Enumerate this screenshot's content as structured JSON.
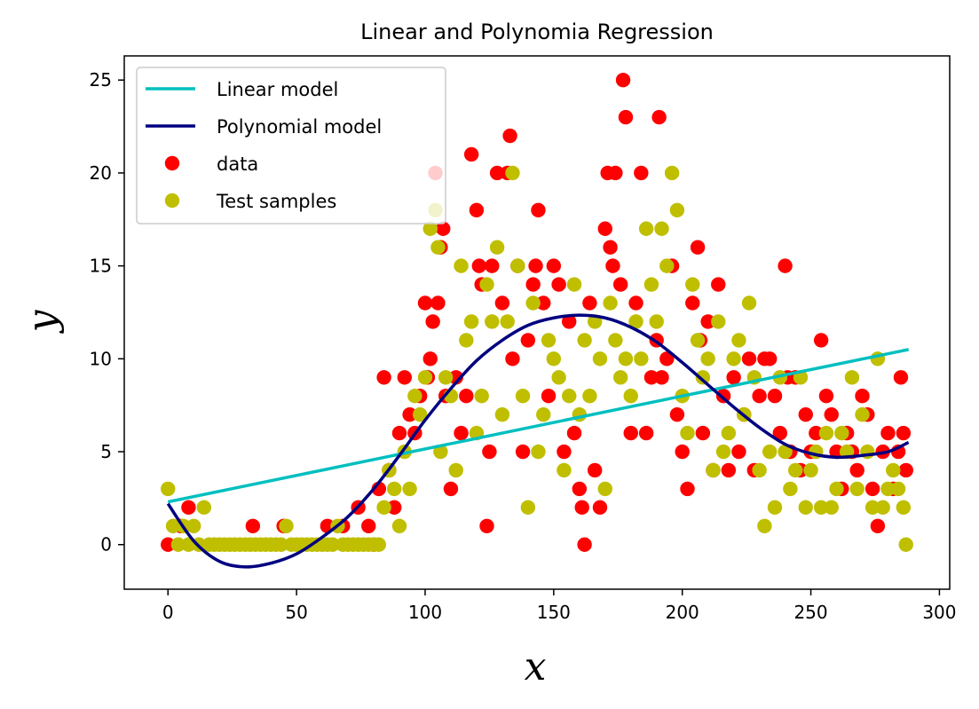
{
  "chart_data": {
    "type": "scatter",
    "title": "Linear and Polynomia Regression",
    "xlabel": "x",
    "ylabel": "y",
    "xlim": [
      -17,
      304
    ],
    "ylim": [
      -2.4,
      26.3
    ],
    "xticks": [
      0,
      50,
      100,
      150,
      200,
      250,
      300
    ],
    "yticks": [
      0,
      5,
      10,
      15,
      20,
      25
    ],
    "grid": false,
    "legend_position": "upper-left",
    "legend": [
      "Linear model",
      "Polynomial model",
      "data",
      "Test samples"
    ],
    "colors": {
      "linear": "#00bfbf",
      "polynomial": "#000080",
      "data": "#ff0000",
      "test": "#bfbf00"
    },
    "series": [
      {
        "name": "Linear model",
        "kind": "line",
        "x": [
          0,
          288
        ],
        "y": [
          2.3,
          10.5
        ]
      },
      {
        "name": "Polynomial model",
        "kind": "line",
        "x": [
          0,
          10,
          20,
          30,
          40,
          50,
          60,
          70,
          80,
          90,
          100,
          110,
          120,
          130,
          140,
          150,
          160,
          170,
          180,
          190,
          200,
          210,
          220,
          230,
          240,
          250,
          260,
          270,
          280,
          288
        ],
        "y": [
          2.2,
          0.2,
          -0.9,
          -1.2,
          -1.0,
          -0.5,
          0.4,
          1.5,
          3.0,
          4.8,
          6.7,
          8.4,
          9.9,
          11.0,
          11.8,
          12.2,
          12.35,
          12.2,
          11.7,
          10.9,
          9.8,
          8.6,
          7.4,
          6.3,
          5.4,
          4.9,
          4.7,
          4.8,
          5.0,
          5.5
        ]
      },
      {
        "name": "data",
        "kind": "scatter",
        "x": [
          0,
          5,
          8,
          33,
          45,
          62,
          68,
          74,
          78,
          80,
          82,
          84,
          86,
          88,
          90,
          92,
          94,
          96,
          98,
          100,
          101,
          102,
          103,
          104,
          105,
          106,
          107,
          108,
          110,
          112,
          114,
          116,
          118,
          120,
          121,
          122,
          124,
          125,
          126,
          128,
          130,
          132,
          133,
          134,
          136,
          138,
          140,
          142,
          143,
          144,
          146,
          148,
          150,
          152,
          154,
          156,
          158,
          160,
          161,
          162,
          164,
          166,
          168,
          170,
          171,
          172,
          173,
          174,
          176,
          177,
          178,
          180,
          182,
          184,
          186,
          188,
          190,
          191,
          192,
          194,
          196,
          198,
          200,
          202,
          204,
          206,
          207,
          208,
          210,
          212,
          214,
          216,
          218,
          220,
          222,
          224,
          226,
          228,
          230,
          232,
          234,
          236,
          238,
          240,
          241,
          242,
          244,
          246,
          248,
          250,
          252,
          254,
          256,
          258,
          260,
          262,
          264,
          266,
          268,
          270,
          272,
          274,
          276,
          278,
          280,
          282,
          284,
          285,
          286,
          287
        ],
        "y": [
          0,
          1,
          2,
          1,
          1,
          1,
          1,
          2,
          1,
          0,
          3,
          9,
          4,
          2,
          6,
          9,
          7,
          6,
          8,
          13,
          9,
          10,
          12,
          20,
          13,
          16,
          17,
          8,
          3,
          9,
          6,
          8,
          21,
          18,
          15,
          14,
          1,
          5,
          15,
          20,
          13,
          20,
          22,
          10,
          15,
          5,
          11,
          14,
          15,
          18,
          13,
          8,
          15,
          14,
          5,
          12,
          6,
          3,
          2,
          0,
          13,
          4,
          2,
          17,
          20,
          16,
          15,
          20,
          14,
          25,
          23,
          6,
          13,
          20,
          6,
          9,
          11,
          23,
          9,
          10,
          15,
          7,
          5,
          3,
          13,
          16,
          11,
          6,
          12,
          4,
          14,
          8,
          4,
          9,
          5,
          7,
          10,
          4,
          8,
          10,
          10,
          8,
          6,
          15,
          9,
          5,
          9,
          4,
          7,
          5,
          6,
          11,
          8,
          7,
          5,
          3,
          6,
          5,
          4,
          8,
          7,
          3,
          1,
          5,
          6,
          3,
          5,
          9,
          6,
          4
        ]
      },
      {
        "name": "Test samples",
        "kind": "scatter",
        "x": [
          0,
          2,
          4,
          6,
          8,
          10,
          12,
          14,
          16,
          18,
          20,
          22,
          24,
          26,
          28,
          30,
          32,
          34,
          36,
          38,
          40,
          42,
          44,
          46,
          48,
          50,
          52,
          54,
          56,
          58,
          60,
          62,
          64,
          66,
          68,
          70,
          72,
          74,
          76,
          78,
          80,
          82,
          84,
          86,
          88,
          90,
          92,
          94,
          96,
          98,
          100,
          102,
          104,
          105,
          106,
          108,
          110,
          112,
          114,
          116,
          118,
          120,
          122,
          124,
          126,
          128,
          130,
          132,
          134,
          136,
          138,
          140,
          142,
          144,
          146,
          148,
          150,
          152,
          154,
          156,
          158,
          160,
          162,
          164,
          166,
          168,
          170,
          172,
          174,
          176,
          178,
          180,
          182,
          184,
          186,
          188,
          190,
          192,
          194,
          196,
          198,
          200,
          202,
          204,
          206,
          208,
          210,
          212,
          214,
          216,
          218,
          220,
          222,
          224,
          226,
          228,
          230,
          232,
          234,
          236,
          238,
          240,
          242,
          244,
          246,
          248,
          250,
          252,
          254,
          256,
          258,
          260,
          262,
          264,
          266,
          268,
          270,
          272,
          274,
          276,
          278,
          280,
          282,
          284,
          286,
          287
        ],
        "y": [
          3,
          1,
          0,
          1,
          0,
          1,
          0,
          2,
          0,
          0,
          0,
          0,
          0,
          0,
          0,
          0,
          0,
          0,
          0,
          0,
          0,
          0,
          0,
          1,
          0,
          0,
          0,
          0,
          0,
          0,
          0,
          0,
          0,
          1,
          0,
          0,
          0,
          0,
          0,
          0,
          0,
          0,
          2,
          4,
          3,
          1,
          5,
          3,
          8,
          7,
          9,
          17,
          18,
          16,
          5,
          9,
          8,
          4,
          15,
          11,
          12,
          6,
          8,
          14,
          12,
          16,
          7,
          12,
          20,
          15,
          8,
          2,
          13,
          5,
          7,
          11,
          10,
          9,
          4,
          8,
          14,
          7,
          11,
          8,
          12,
          10,
          3,
          13,
          11,
          9,
          10,
          8,
          12,
          10,
          17,
          14,
          12,
          17,
          15,
          20,
          18,
          8,
          6,
          14,
          11,
          9,
          10,
          4,
          12,
          5,
          6,
          10,
          11,
          7,
          13,
          9,
          4,
          1,
          5,
          2,
          9,
          5,
          3,
          4,
          9,
          2,
          4,
          5,
          2,
          6,
          2,
          3,
          6,
          5,
          9,
          3,
          7,
          5,
          2,
          10,
          2,
          3,
          4,
          3,
          2,
          0
        ]
      }
    ]
  }
}
